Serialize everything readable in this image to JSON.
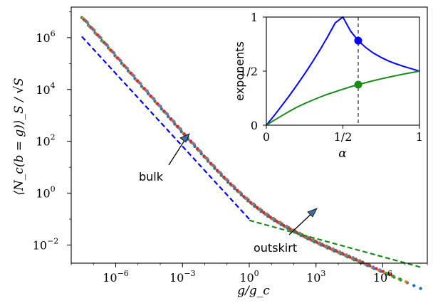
{
  "chart_data": [
    {
      "type": "scatter",
      "title": "",
      "xlabel": "g/g_c",
      "ylabel": "⟨N_c(b = g)⟩_S / √S",
      "xscale": "log",
      "yscale": "log",
      "xlim": [
        1e-08,
        100000000.0
      ],
      "ylim": [
        0.002,
        15000000.0
      ],
      "x_ticks": [
        {
          "value": 1e-06,
          "base": "10",
          "exp": "−6"
        },
        {
          "value": 0.001,
          "base": "10",
          "exp": "−3"
        },
        {
          "value": 1,
          "base": "10",
          "exp": "0"
        },
        {
          "value": 1000.0,
          "base": "10",
          "exp": "3"
        },
        {
          "value": 1000000.0,
          "base": "10",
          "exp": "6"
        }
      ],
      "y_ticks": [
        {
          "value": 1000000.0,
          "base": "10",
          "exp": "6"
        },
        {
          "value": 10000.0,
          "base": "10",
          "exp": "4"
        },
        {
          "value": 100,
          "base": "10",
          "exp": "2"
        },
        {
          "value": 1,
          "base": "10",
          "exp": "0"
        },
        {
          "value": 0.01,
          "base": "10",
          "exp": "−2"
        }
      ],
      "series": [
        {
          "kind": "points",
          "color": "#1f77b4",
          "x_range": [
            3e-08,
            50000000.0
          ],
          "y_at_x": {
            "3e-8": 6300000.0,
            "1": 0.65,
            "5e7": 0.009
          }
        },
        {
          "kind": "points",
          "color": "#ff7f0e",
          "x_range": [
            3e-08,
            20000000.0
          ]
        },
        {
          "kind": "points",
          "color": "#2ca02c",
          "x_range": [
            3e-08,
            10000000.0
          ]
        },
        {
          "kind": "points",
          "color": "#d62728",
          "x_range": [
            3e-08,
            3000000.0
          ]
        },
        {
          "kind": "points",
          "color": "#9467bd",
          "x_range": [
            3e-08,
            1000000.0
          ]
        },
        {
          "kind": "points",
          "color": "#8c564b",
          "x_range": [
            3e-08,
            300000.0
          ]
        },
        {
          "kind": "points",
          "color": "#7f7f7f",
          "x_range": [
            3e-08,
            100000.0
          ]
        }
      ],
      "guides": [
        {
          "name": "bulk",
          "color": "#0000ff",
          "style": "dashed",
          "x": [
            3e-08,
            1
          ],
          "y": [
            1100000.0,
            0.1
          ]
        },
        {
          "name": "outskirt",
          "color": "#1a8a1a",
          "style": "dashed",
          "x": [
            1,
            50000000.0
          ],
          "y": [
            0.09,
            0.0014
          ]
        }
      ],
      "annotations": [
        {
          "text": "bulk",
          "x": 0.0001,
          "y": 1.2
        },
        {
          "text": "outskirt",
          "x": 200,
          "y": 0.00085
        }
      ]
    },
    {
      "type": "line",
      "title": "",
      "xlabel": "α",
      "ylabel": "exponents",
      "xlim": [
        0,
        1
      ],
      "ylim": [
        0,
        1
      ],
      "x_ticks": [
        {
          "value": 0,
          "label": "0"
        },
        {
          "value": 0.5,
          "label": "1/2"
        },
        {
          "value": 1,
          "label": "1"
        }
      ],
      "y_ticks": [
        {
          "value": 0,
          "label": "0"
        },
        {
          "value": 0.5,
          "label": "1/2"
        },
        {
          "value": 1,
          "label": "1"
        }
      ],
      "series": [
        {
          "color": "#0000ff",
          "x": [
            0,
            0.05,
            0.1,
            0.15,
            0.2,
            0.25,
            0.3,
            0.35,
            0.4,
            0.45,
            0.5,
            0.55,
            0.6,
            0.65,
            0.7,
            0.75,
            0.8,
            0.85,
            0.9,
            0.95,
            1.0
          ],
          "y": [
            0,
            0.087,
            0.179,
            0.273,
            0.372,
            0.475,
            0.583,
            0.697,
            0.818,
            0.947,
            1.0,
            0.87,
            0.782,
            0.717,
            0.666,
            0.626,
            0.593,
            0.566,
            0.542,
            0.521,
            0.5
          ]
        },
        {
          "color": "#1a8a1a",
          "x": [
            0,
            0.05,
            0.1,
            0.15,
            0.2,
            0.25,
            0.3,
            0.35,
            0.4,
            0.45,
            0.5,
            0.55,
            0.6,
            0.65,
            0.7,
            0.75,
            0.8,
            0.85,
            0.9,
            0.95,
            1.0
          ],
          "y": [
            0,
            0.045,
            0.087,
            0.128,
            0.167,
            0.2,
            0.23,
            0.26,
            0.286,
            0.31,
            0.333,
            0.355,
            0.375,
            0.394,
            0.412,
            0.429,
            0.444,
            0.459,
            0.474,
            0.487,
            0.5
          ]
        }
      ],
      "vline": {
        "x": 0.6,
        "style": "dashed",
        "color": "#000000"
      },
      "markers": [
        {
          "x": 0.6,
          "y": 0.782,
          "color": "#0000ff"
        },
        {
          "x": 0.6,
          "y": 0.375,
          "color": "#1a8a1a"
        }
      ]
    }
  ]
}
